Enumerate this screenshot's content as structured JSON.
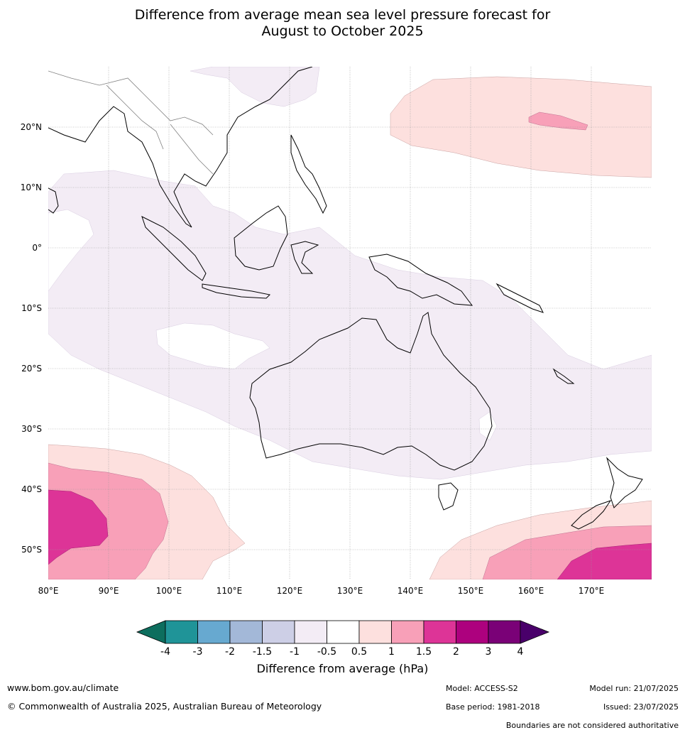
{
  "title": {
    "line1": "Difference from average mean sea level pressure forecast for",
    "line2": "August to October 2025"
  },
  "map": {
    "lat_labels": [
      "20°N",
      "10°N",
      "0°",
      "10°S",
      "20°S",
      "30°S",
      "40°S",
      "50°S"
    ],
    "lon_labels": [
      "80°E",
      "90°E",
      "100°E",
      "110°E",
      "120°E",
      "130°E",
      "140°E",
      "150°E",
      "160°E",
      "170°E"
    ]
  },
  "colorbar": {
    "ticks": [
      "-4",
      "-3",
      "-2",
      "-1.5",
      "-1",
      "-0.5",
      "0.5",
      "1",
      "1.5",
      "2",
      "3",
      "4"
    ],
    "colors": [
      "#0d6e5e",
      "#1f9498",
      "#67a9d0",
      "#a3b8d8",
      "#cdcfe6",
      "#f3ecf5",
      "#ffffff",
      "#fde0de",
      "#f8a0b8",
      "#dd3497",
      "#ad017e",
      "#7a0177",
      "#49006a"
    ],
    "title": "Difference from average (hPa)"
  },
  "footer": {
    "website": "www.bom.gov.au/climate",
    "copyright": "© Commonwealth of Australia 2025, Australian Bureau of Meteorology",
    "model": "Model: ACCESS-S2",
    "base_period": "Base period: 1981-2018",
    "model_run": "Model run: 21/07/2025",
    "issued": "Issued: 23/07/2025",
    "disclaimer": "Boundaries are not considered authoritative"
  }
}
